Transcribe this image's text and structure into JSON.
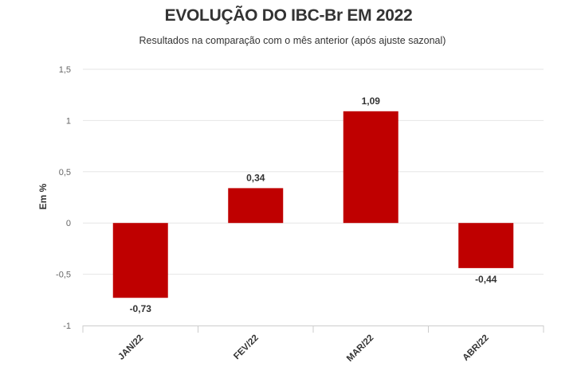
{
  "chart_data": {
    "type": "bar",
    "title": "EVOLUÇÃO DO IBC-Br EM 2022",
    "subtitle": "Resultados na comparação com o mês anterior (após ajuste sazonal)",
    "xlabel": "",
    "ylabel": "Em %",
    "categories": [
      "JAN/22",
      "FEV/22",
      "MAR/22",
      "ABR/22"
    ],
    "values": [
      -0.73,
      0.34,
      1.09,
      -0.44
    ],
    "value_labels": [
      "-0,73",
      "0,34",
      "1,09",
      "-0,44"
    ],
    "ylim": [
      -1,
      1.5
    ],
    "yticks": [
      1.5,
      1,
      0.5,
      0,
      -0.5,
      -1
    ],
    "ytick_labels": [
      "1,5",
      "1",
      "0,5",
      "0",
      "-0,5",
      "-1"
    ],
    "grid": true,
    "legend": "none",
    "bar_color": "#bf0000"
  }
}
